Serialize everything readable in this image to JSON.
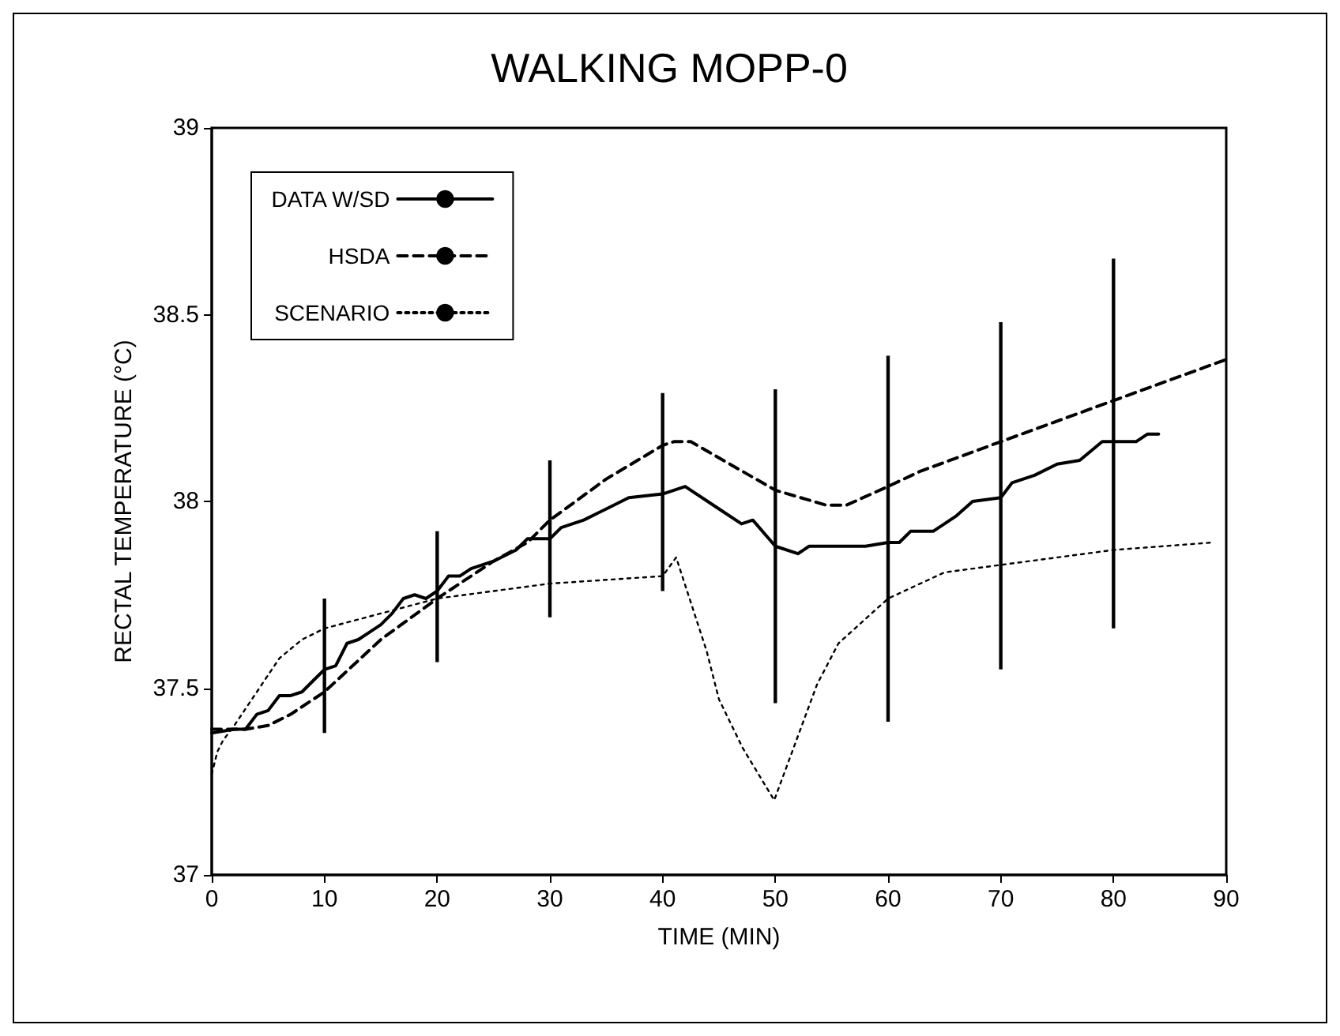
{
  "chart_data": {
    "type": "line",
    "title": "WALKING MOPP-0",
    "xlabel": "TIME (MIN)",
    "ylabel": "RECTAL TEMPERATURE (°C)",
    "xlim": [
      0,
      90
    ],
    "xticks": [
      0,
      10,
      20,
      30,
      40,
      50,
      60,
      70,
      80,
      90
    ],
    "ylim": [
      37,
      39
    ],
    "yticks": [
      37,
      37.5,
      38,
      38.5,
      39
    ],
    "grid": false,
    "legend": "top left",
    "marker": "none",
    "series": [
      {
        "name": "DATA W/SD",
        "color": "#000000",
        "line_style": "solid",
        "x": [
          0,
          2,
          3,
          4,
          5,
          6,
          7,
          8,
          9,
          10,
          11,
          12,
          13,
          14,
          15,
          16,
          17,
          18,
          19,
          20,
          21,
          22,
          23,
          25,
          27,
          28,
          30,
          31,
          33,
          35,
          37,
          40,
          42,
          45,
          47,
          48,
          50,
          52,
          53,
          56,
          58,
          60,
          61,
          62,
          64,
          66,
          67.5,
          70,
          71,
          73,
          75,
          77,
          79,
          80,
          82,
          83,
          84
        ],
        "values": [
          37.38,
          37.39,
          37.39,
          37.43,
          37.44,
          37.48,
          37.48,
          37.49,
          37.52,
          37.55,
          37.56,
          37.62,
          37.63,
          37.65,
          37.67,
          37.7,
          37.74,
          37.75,
          37.74,
          37.76,
          37.8,
          37.8,
          37.82,
          37.84,
          37.87,
          37.9,
          37.9,
          37.93,
          37.95,
          37.98,
          38.01,
          38.02,
          38.04,
          37.98,
          37.94,
          37.95,
          37.88,
          37.86,
          37.88,
          37.88,
          37.88,
          37.89,
          37.89,
          37.92,
          37.92,
          37.96,
          38.0,
          38.01,
          38.05,
          38.07,
          38.1,
          38.11,
          38.16,
          38.16,
          38.16,
          38.18,
          38.18
        ],
        "errors": [
          null,
          null,
          null,
          null,
          null,
          null,
          null,
          null,
          null,
          [
            37.38,
            37.74
          ],
          null,
          null,
          null,
          null,
          null,
          null,
          null,
          null,
          null,
          [
            37.57,
            37.92
          ],
          null,
          null,
          null,
          null,
          null,
          null,
          [
            37.69,
            38.11
          ],
          null,
          null,
          null,
          null,
          [
            37.76,
            38.29
          ],
          null,
          null,
          null,
          null,
          [
            37.46,
            38.3
          ],
          null,
          null,
          null,
          null,
          [
            37.41,
            38.39
          ],
          null,
          null,
          null,
          null,
          null,
          [
            37.55,
            38.48
          ],
          null,
          null,
          null,
          null,
          null,
          [
            37.66,
            38.65
          ],
          null,
          null,
          null
        ]
      },
      {
        "name": "HSDA",
        "color": "#000000",
        "line_style": "dashed",
        "x": [
          0,
          3,
          5,
          7,
          10,
          15,
          20,
          25,
          28,
          30,
          35,
          40,
          41,
          42.5,
          50,
          54.5,
          56.3,
          60,
          62.8,
          70,
          80,
          90
        ],
        "values": [
          37.39,
          37.39,
          37.4,
          37.43,
          37.49,
          37.63,
          37.74,
          37.84,
          37.89,
          37.95,
          38.06,
          38.15,
          38.16,
          38.16,
          38.03,
          37.99,
          37.99,
          38.04,
          38.08,
          38.16,
          38.27,
          38.38
        ]
      },
      {
        "name": "SCENARIO",
        "color": "#000000",
        "line_style": "dotted",
        "x": [
          0,
          0.5,
          1,
          2,
          4,
          6,
          8,
          10,
          15,
          20,
          30,
          40,
          41.2,
          43.9,
          45,
          47.1,
          49.9,
          53.7,
          55.6,
          60,
          65,
          70,
          80,
          88.8
        ],
        "values": [
          37.27,
          37.33,
          37.36,
          37.4,
          37.49,
          37.58,
          37.63,
          37.66,
          37.7,
          37.74,
          37.78,
          37.8,
          37.85,
          37.6,
          37.47,
          37.34,
          37.2,
          37.51,
          37.62,
          37.74,
          37.81,
          37.83,
          37.87,
          37.89
        ]
      }
    ]
  }
}
